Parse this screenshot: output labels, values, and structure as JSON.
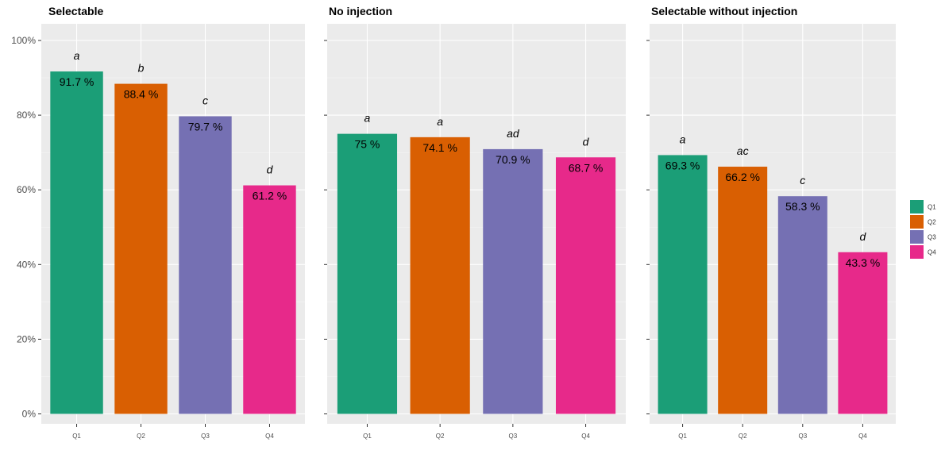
{
  "chart_data": {
    "type": "bar",
    "categories": [
      "Q1",
      "Q2",
      "Q3",
      "Q4"
    ],
    "colors": [
      "#1b9e77",
      "#d95f02",
      "#7570b3",
      "#e7298a"
    ],
    "ylim": [
      0,
      100
    ],
    "yticks": [
      {
        "value": 0,
        "label": "0%"
      },
      {
        "value": 20,
        "label": "20%"
      },
      {
        "value": 40,
        "label": "40%"
      },
      {
        "value": 60,
        "label": "60%"
      },
      {
        "value": 80,
        "label": "80%"
      },
      {
        "value": 100,
        "label": "100%"
      }
    ],
    "panels": [
      {
        "title": "Selectable",
        "values": [
          91.7,
          88.4,
          79.7,
          61.2
        ],
        "value_labels": [
          "91.7 %",
          "88.4 %",
          "79.7 %",
          "61.2 %"
        ],
        "letters": [
          "a",
          "b",
          "c",
          "d"
        ]
      },
      {
        "title": "No injection",
        "values": [
          75,
          74.1,
          70.9,
          68.7
        ],
        "value_labels": [
          "75 %",
          "74.1 %",
          "70.9 %",
          "68.7 %"
        ],
        "letters": [
          "a",
          "a",
          "ad",
          "d"
        ]
      },
      {
        "title": "Selectable without injection",
        "values": [
          69.3,
          66.2,
          58.3,
          43.3
        ],
        "value_labels": [
          "69.3 %",
          "66.2 %",
          "58.3 %",
          "43.3 %"
        ],
        "letters": [
          "a",
          "ac",
          "c",
          "d"
        ]
      }
    ],
    "legend": {
      "position": "right",
      "items": [
        "Q1",
        "Q2",
        "Q3",
        "Q4"
      ]
    },
    "grid": true
  }
}
